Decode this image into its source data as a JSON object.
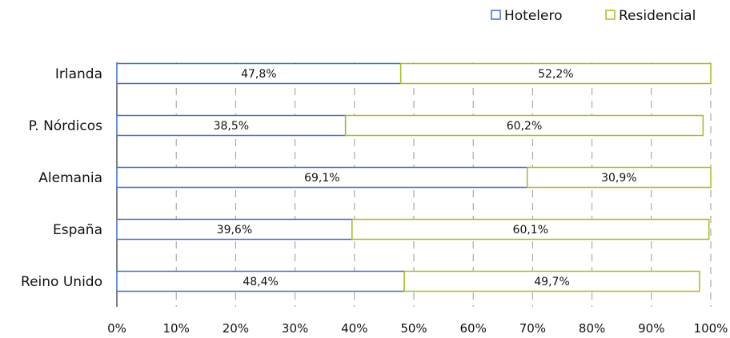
{
  "chart_data": {
    "type": "bar",
    "orientation": "horizontal",
    "stacked": true,
    "categories": [
      "Irlanda",
      "P. Nórdicos",
      "Alemania",
      "España",
      "Reino Unido"
    ],
    "series": [
      {
        "name": "Hotelero",
        "values": [
          47.8,
          38.5,
          69.1,
          39.6,
          48.4
        ],
        "labels": [
          "47,8%",
          "38,5%",
          "69,1%",
          "39,6%",
          "48,4%"
        ],
        "color": "#3a6fd6"
      },
      {
        "name": "Residencial",
        "values": [
          52.2,
          60.2,
          30.9,
          60.1,
          49.7
        ],
        "labels": [
          "52,2%",
          "60,2%",
          "30,9%",
          "60,1%",
          "49,7%"
        ],
        "color": "#9fc21c"
      }
    ],
    "xlim": [
      0,
      100
    ],
    "x_ticks": [
      "0%",
      "10%",
      "20%",
      "30%",
      "40%",
      "50%",
      "60%",
      "70%",
      "80%",
      "90%",
      "100%"
    ],
    "grid": "vertical dashed",
    "legend_position": "top-right"
  }
}
